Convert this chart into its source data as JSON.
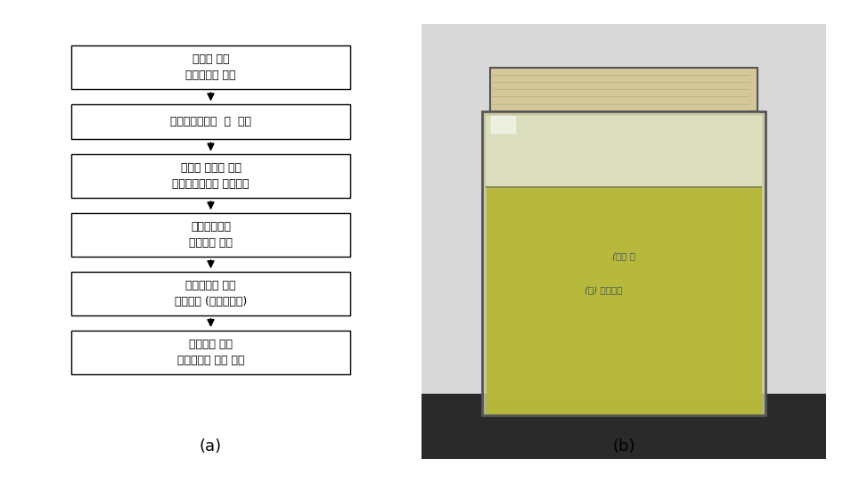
{
  "background_color": "#ffffff",
  "panel_a_label": "(a)",
  "panel_b_label": "(b)",
  "flowchart_boxes": [
    "용매에 의한\n젤리성분의 용해",
    "젤리계면에서의  막  형성",
    "용액의 교반에 의한\n케이블로부터의 젤리분리",
    "유리전이온도\n이상으로 가열",
    "폴리에틸렌 수지\n점성변화 (비결정상태)",
    "원심력에 의한\n폴리에틸렌 수지 분리"
  ],
  "box_edge_color": "#000000",
  "box_face_color": "#ffffff",
  "text_color": "#000000",
  "arrow_color": "#000000",
  "font_size": 9,
  "label_font_size": 13
}
